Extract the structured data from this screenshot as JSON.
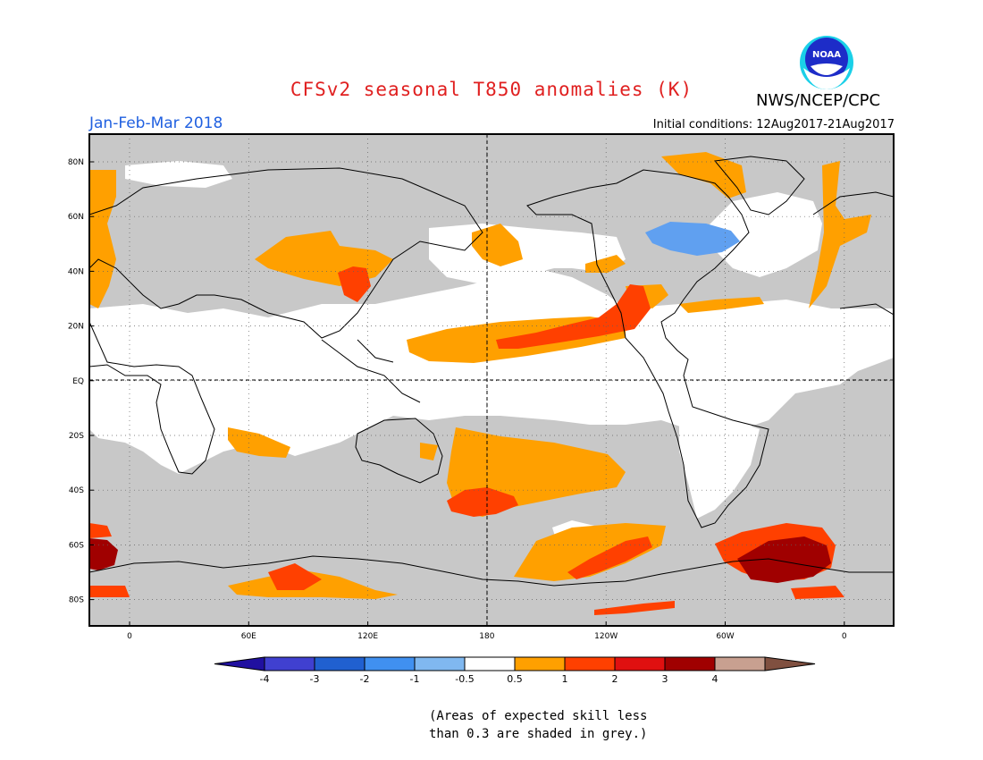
{
  "header": {
    "title": "CFSv2 seasonal T850 anomalies (K)",
    "agency": "NWS/NCEP/CPC",
    "logo_text": "NOAA",
    "season": "Jan-Feb-Mar 2018",
    "initial_conditions": "Initial conditions: 12Aug2017-21Aug2017"
  },
  "map": {
    "lat_labels": [
      "80N",
      "60N",
      "40N",
      "20N",
      "EQ",
      "20S",
      "40S",
      "60S",
      "80S"
    ],
    "lon_labels": [
      "0",
      "60E",
      "120E",
      "180",
      "120W",
      "60W",
      "0"
    ],
    "grey_meaning": "expected skill less than 0.3",
    "colors": {
      "low_skill_grey": "#c8c8c8",
      "ocean_white": "#ffffff",
      "anom_0_5_to_1": "#ffa000",
      "anom_1_to_2": "#ff4000",
      "anom_2_to_3": "#a00000",
      "anom_neg_0_5_to_1": "#60a0f0"
    }
  },
  "colorbar": {
    "labels": [
      "-4",
      "-3",
      "-2",
      "-1",
      "-0.5",
      "0.5",
      "1",
      "2",
      "3",
      "4"
    ],
    "colors": [
      "#2010a0",
      "#4040d0",
      "#2060d0",
      "#4090f0",
      "#80b8f0",
      "#ffffff",
      "#ffa000",
      "#ff4000",
      "#e01010",
      "#a00000",
      "#c8a090",
      "#805040"
    ]
  },
  "footnote": {
    "line1": "(Areas of expected skill less",
    "line2": "than 0.3 are shaded in grey.)"
  }
}
